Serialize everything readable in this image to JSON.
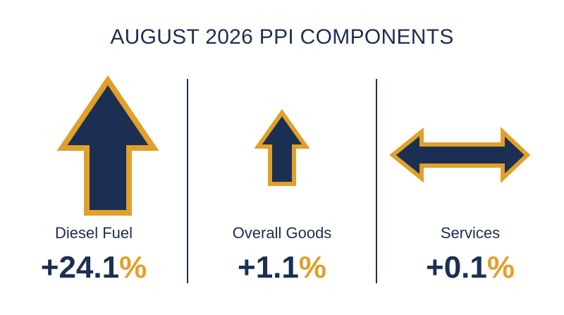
{
  "title": "AUGUST 2026 PPI COMPONENTS",
  "colors": {
    "navy": "#1b2f52",
    "gold": "#e0a02a",
    "background": "#ffffff"
  },
  "components": [
    {
      "label": "Diesel Fuel",
      "value": "+24.1",
      "unit": "%",
      "icon": "large-up-arrow-icon"
    },
    {
      "label": "Overall Goods",
      "value": "+1.1",
      "unit": "%",
      "icon": "small-up-arrow-icon"
    },
    {
      "label": "Services",
      "value": "+0.1",
      "unit": "%",
      "icon": "left-right-arrow-icon"
    }
  ]
}
